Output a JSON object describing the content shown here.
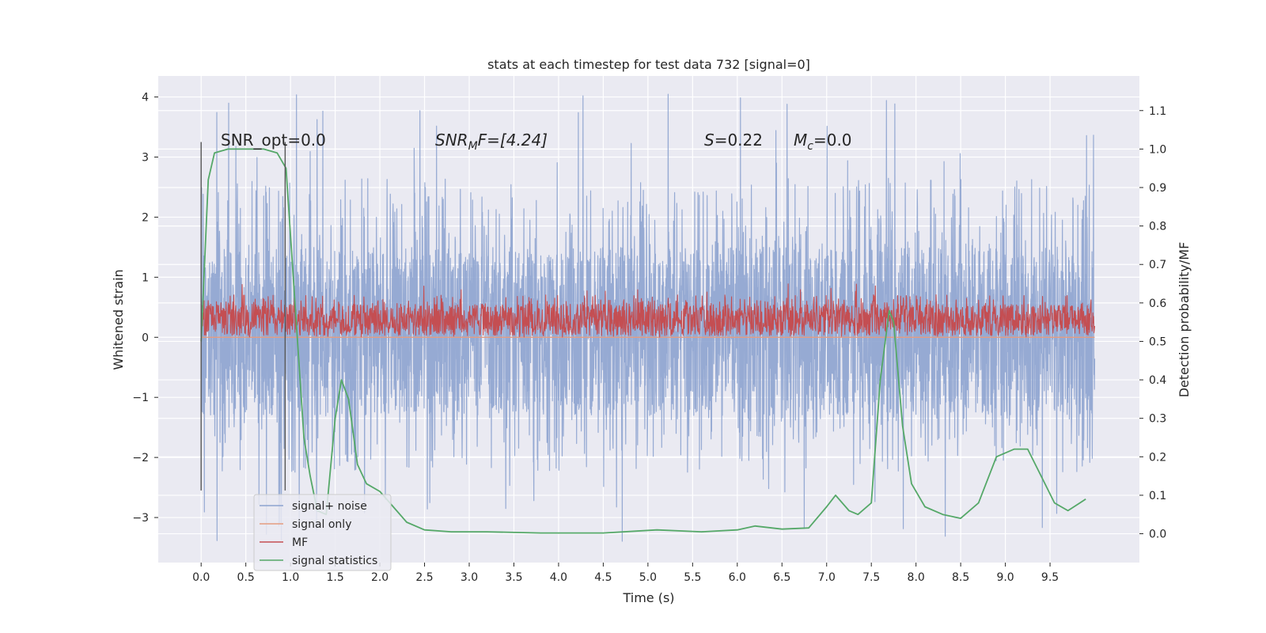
{
  "chart_data": {
    "type": "line",
    "title": "stats at each timestep for test data 732 [signal=0]",
    "xlabel": "Time (s)",
    "ylabel_left": "Whitened strain",
    "ylabel_right": "Detection probability/MF",
    "xlim": [
      -0.48,
      10.5
    ],
    "ylim_left": [
      -3.75,
      4.35
    ],
    "ylim_right": [
      -0.075,
      1.19
    ],
    "x_ticks": [
      0.0,
      0.5,
      1.0,
      1.5,
      2.0,
      2.5,
      3.0,
      3.5,
      4.0,
      4.5,
      5.0,
      5.5,
      6.0,
      6.5,
      7.0,
      7.5,
      8.0,
      8.5,
      9.0,
      9.5
    ],
    "x_tick_labels": [
      "0.0",
      "0.5",
      "1.0",
      "1.5",
      "2.0",
      "2.5",
      "3.0",
      "3.5",
      "4.0",
      "4.5",
      "5.0",
      "5.5",
      "6.0",
      "6.5",
      "7.0",
      "7.5",
      "8.0",
      "8.5",
      "9.0",
      "9.5"
    ],
    "y_left_ticks": [
      4,
      3,
      2,
      1,
      0,
      -1,
      -2,
      -3
    ],
    "y_left_tick_labels": [
      "4",
      "3",
      "2",
      "1",
      "0",
      "−1",
      "−2",
      "−3"
    ],
    "y_right_ticks": [
      1.1,
      1.0,
      0.9,
      0.8,
      0.7,
      0.6,
      0.5,
      0.4,
      0.3,
      0.2,
      0.1,
      0.0
    ],
    "y_right_tick_labels": [
      "1.1",
      "1.0",
      "0.9",
      "0.8",
      "0.7",
      "0.6",
      "0.5",
      "0.4",
      "0.3",
      "0.2",
      "0.1",
      "0.0"
    ],
    "grid": true,
    "legend_position": "lower-left",
    "annotations": {
      "snr_opt": "SNR_opt=0.0",
      "snr_mf_prefix": "SNR",
      "snr_mf_sub": "M",
      "snr_mf_rest": "F=[4.24]",
      "s_var": "S",
      "s_val": "=0.22",
      "mc_var": "M",
      "mc_sub": "c",
      "mc_val": "=0.0"
    },
    "vertical_markers": [
      0.0,
      0.94
    ],
    "series": [
      {
        "name": "signal+ noise",
        "color": "#8da3cf",
        "axis": "left",
        "kind": "noise",
        "x_range": [
          0.0,
          10.0
        ],
        "y_band": [
          -1.3,
          1.5
        ],
        "y_extremes": [
          -3.4,
          4.05
        ]
      },
      {
        "name": "signal only",
        "color": "#e59c80",
        "axis": "left",
        "kind": "line",
        "x": [
          0.0,
          10.0
        ],
        "y": [
          0.0,
          0.0
        ]
      },
      {
        "name": "MF",
        "color": "#c44e52",
        "axis": "left",
        "kind": "noise",
        "x_range": [
          0.0,
          10.0
        ],
        "y_band": [
          0.05,
          0.55
        ],
        "y_extremes": [
          0.0,
          0.9
        ]
      },
      {
        "name": "signal statistics",
        "color": "#55a868",
        "axis": "right",
        "kind": "line",
        "x": [
          0.0,
          0.08,
          0.15,
          0.3,
          0.5,
          0.7,
          0.85,
          0.95,
          1.05,
          1.15,
          1.22,
          1.3,
          1.4,
          1.5,
          1.57,
          1.65,
          1.75,
          1.85,
          2.0,
          2.15,
          2.3,
          2.5,
          2.8,
          3.2,
          3.8,
          4.5,
          5.1,
          5.6,
          6.0,
          6.2,
          6.5,
          6.8,
          7.0,
          7.1,
          7.25,
          7.35,
          7.5,
          7.6,
          7.7,
          7.75,
          7.85,
          7.95,
          8.1,
          8.3,
          8.5,
          8.7,
          8.9,
          9.1,
          9.25,
          9.4,
          9.55,
          9.7,
          9.9
        ],
        "y": [
          0.5,
          0.92,
          0.99,
          1.0,
          1.0,
          1.0,
          0.99,
          0.95,
          0.6,
          0.25,
          0.15,
          0.06,
          0.05,
          0.3,
          0.4,
          0.35,
          0.18,
          0.13,
          0.11,
          0.07,
          0.03,
          0.01,
          0.005,
          0.005,
          0.002,
          0.002,
          0.01,
          0.005,
          0.01,
          0.02,
          0.012,
          0.015,
          0.07,
          0.1,
          0.06,
          0.05,
          0.08,
          0.4,
          0.58,
          0.55,
          0.28,
          0.13,
          0.07,
          0.05,
          0.04,
          0.08,
          0.2,
          0.22,
          0.22,
          0.15,
          0.08,
          0.06,
          0.09
        ]
      }
    ]
  }
}
